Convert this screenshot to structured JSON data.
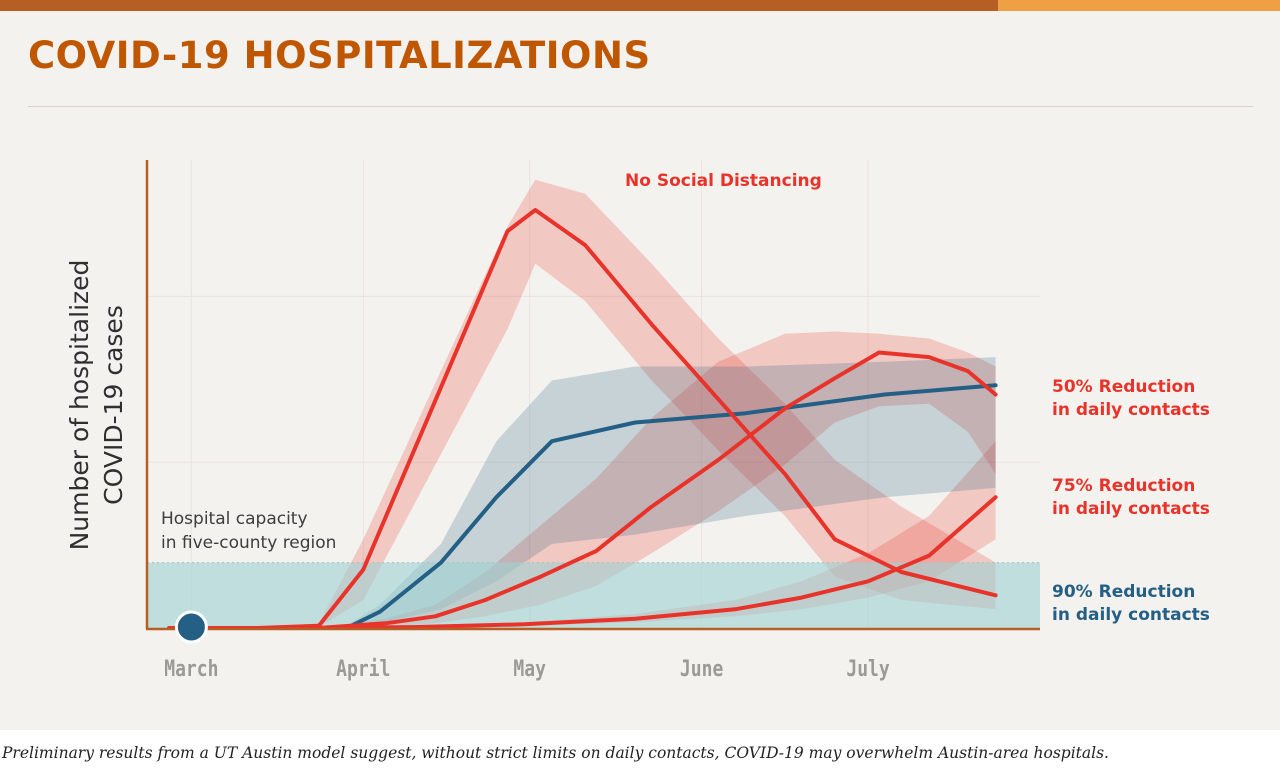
{
  "header": {
    "title": "COVID-19 HOSPITALIZATIONS",
    "accent_color": "#b65f24",
    "accent_color_2": "#f0a044"
  },
  "caption": "Preliminary results from a UT Austin model suggest, without strict limits on daily contacts, COVID-19 may overwhelm Austin-area hospitals.",
  "chart_data": {
    "type": "line",
    "title": "COVID-19 HOSPITALIZATIONS",
    "ylabel_lines": [
      "Number of hospitalized",
      "COVID-19 cases"
    ],
    "xlabel": "",
    "x_unit": "days since March 1",
    "xlim": [
      -8,
      153
    ],
    "ylim": [
      0,
      100
    ],
    "y_gridlines": [
      35.5,
      71
    ],
    "x_ticks": [
      {
        "label": "March",
        "x": 0
      },
      {
        "label": "April",
        "x": 31
      },
      {
        "label": "May",
        "x": 61
      },
      {
        "label": "June",
        "x": 92
      },
      {
        "label": "July",
        "x": 122
      }
    ],
    "marker": {
      "x": 0,
      "y": 0,
      "color": "#245f86"
    },
    "capacity": {
      "label_lines": [
        "Hospital capacity",
        "in five-county region"
      ],
      "y": 14,
      "color": "#9fd2d4"
    },
    "series": [
      {
        "name": "No Social Distancing",
        "label_lines": [
          "No Social Distancing"
        ],
        "color": "#e8332b",
        "band_color": "#e8332b",
        "x": [
          -4,
          0,
          12,
          23,
          31,
          57,
          62,
          71,
          83,
          95,
          107,
          116,
          128,
          145
        ],
        "y": [
          0,
          0,
          0,
          0.5,
          12.5,
          85,
          89.5,
          82,
          65,
          49,
          33,
          19,
          12,
          7
        ],
        "low": [
          0,
          0,
          0,
          0.2,
          6,
          64,
          78,
          70,
          53,
          38,
          24,
          11,
          6,
          4
        ],
        "high": [
          0,
          0,
          0,
          1,
          19,
          86,
          96,
          93,
          78,
          62,
          48,
          36,
          26,
          14
        ]
      },
      {
        "name": "50% Reduction in daily contacts",
        "label_lines": [
          "50% Reduction",
          "in daily contacts"
        ],
        "color": "#e8332b",
        "band_color": "#e8332b",
        "x": [
          -4,
          10,
          23,
          35,
          44,
          53,
          63,
          73,
          83,
          95,
          107,
          116,
          124,
          133,
          140,
          145
        ],
        "y": [
          0,
          0,
          0,
          1,
          2.5,
          6,
          11,
          16.5,
          26,
          36,
          47,
          53.5,
          59,
          58,
          55,
          50
        ],
        "low": [
          0,
          0,
          0,
          0.3,
          1,
          2.5,
          5,
          9,
          16,
          25,
          35,
          44,
          47.5,
          48,
          42,
          33
        ],
        "high": [
          0,
          0,
          0,
          2,
          5,
          12,
          22,
          32,
          45,
          57,
          63,
          63.5,
          63,
          62,
          59,
          56
        ]
      },
      {
        "name": "75% Reduction in daily contacts",
        "label_lines": [
          "75% Reduction",
          "in daily contacts"
        ],
        "color": "#e8332b",
        "band_color": "#e8332b",
        "x": [
          -4,
          20,
          40,
          60,
          80,
          98,
          110,
          122,
          133,
          145
        ],
        "y": [
          0,
          0,
          0.2,
          0.8,
          2,
          4,
          6.5,
          10,
          15.5,
          28
        ],
        "low": [
          0,
          0,
          0,
          0.4,
          1.2,
          2.5,
          4,
          6.5,
          10,
          19
        ],
        "high": [
          0,
          0,
          0.4,
          1.2,
          3,
          6,
          10,
          16,
          24,
          40
        ]
      },
      {
        "name": "90% Reduction in daily contacts",
        "label_lines": [
          "90% Reduction",
          "in daily contacts"
        ],
        "color": "#245f86",
        "band_color": "#245f86",
        "x": [
          -4,
          12,
          23,
          28,
          34,
          45,
          55,
          65,
          80,
          100,
          125,
          145
        ],
        "y": [
          0,
          0,
          0,
          0,
          3.5,
          14,
          28,
          40,
          44,
          46,
          50,
          52
        ],
        "low": [
          0,
          0,
          0,
          0,
          1,
          4,
          10,
          18,
          20,
          24,
          28,
          30
        ],
        "high": [
          0,
          0,
          0,
          0.5,
          5,
          18,
          40,
          53,
          56,
          56,
          57,
          58
        ]
      }
    ]
  }
}
